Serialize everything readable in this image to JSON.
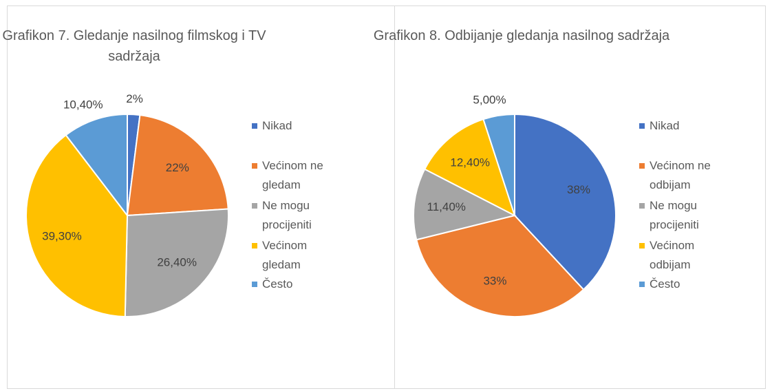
{
  "chart_data": [
    {
      "type": "pie",
      "title": "Grafikon 7. Gledanje nasilnog filmskog i TV sadržaja",
      "categories": [
        "Nikad",
        "Većinom ne gledam",
        "Ne mogu procijeniti",
        "Većinom gledam",
        "Često"
      ],
      "values": [
        2,
        22,
        26.4,
        39.3,
        10.4
      ],
      "value_labels": [
        "2%",
        "22%",
        "26,40%",
        "39,30%",
        "10,40%"
      ],
      "colors": [
        "#4472c4",
        "#ed7d31",
        "#a5a5a5",
        "#ffc000",
        "#5b9bd5"
      ]
    },
    {
      "type": "pie",
      "title": "Grafikon 8. Odbijanje gledanja nasilnog sadržaja",
      "categories": [
        "Nikad",
        "Većinom ne odbijam",
        "Ne mogu procijeniti",
        "Većinom odbijam",
        "Često"
      ],
      "values": [
        38,
        33,
        11.4,
        12.4,
        5
      ],
      "value_labels": [
        "38%",
        "33%",
        "11,40%",
        "12,40%",
        "5,00%"
      ],
      "colors": [
        "#4472c4",
        "#ed7d31",
        "#a5a5a5",
        "#ffc000",
        "#5b9bd5"
      ]
    }
  ]
}
